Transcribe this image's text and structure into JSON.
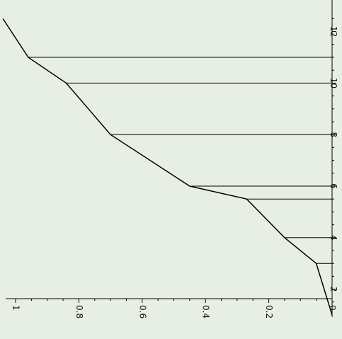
{
  "colors": {
    "background": "#e7efe4",
    "line": "#000000"
  },
  "chart_data": {
    "type": "line",
    "orientation": "rotated-90",
    "title": "",
    "xlabel": "",
    "ylabel": "",
    "grid": false,
    "legend": "none",
    "xlim": [
      1,
      12.5
    ],
    "ylim": [
      0,
      1
    ],
    "x_ticks": [
      {
        "value": 2,
        "label": "2"
      },
      {
        "value": 4,
        "label": "4"
      },
      {
        "value": 6,
        "label": "6"
      },
      {
        "value": 8,
        "label": "8"
      },
      {
        "value": 10,
        "label": "10"
      },
      {
        "value": 12,
        "label": "12"
      }
    ],
    "y_ticks": [
      {
        "value": 0,
        "label": "0"
      },
      {
        "value": 0.2,
        "label": "0.2"
      },
      {
        "value": 0.4,
        "label": "0.4"
      },
      {
        "value": 0.6,
        "label": "0.6"
      },
      {
        "value": 0.8,
        "label": "0.8"
      },
      {
        "value": 1,
        "label": "1"
      }
    ],
    "series": [
      {
        "x": [
          1.0,
          3.0,
          4.0,
          5.5,
          6.0,
          8.0,
          10.0,
          11.0,
          12.5
        ],
        "y": [
          0.0,
          0.05,
          0.15,
          0.27,
          0.45,
          0.7,
          0.84,
          0.96,
          1.04
        ]
      }
    ],
    "drop_lines_x": [
      3,
      4,
      5.5,
      6,
      8,
      10,
      11
    ]
  }
}
